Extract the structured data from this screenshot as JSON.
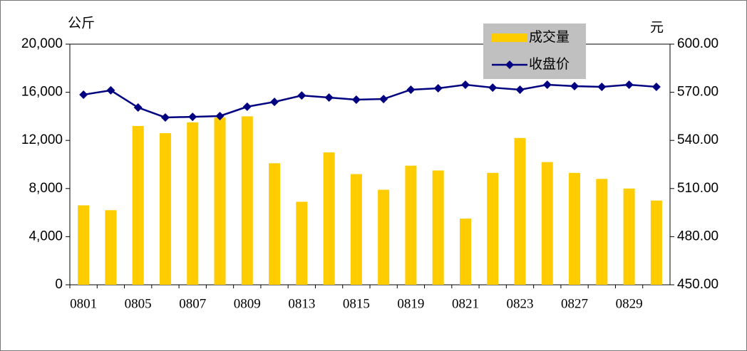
{
  "chart_data": {
    "type": "bar",
    "y_label": "公斤",
    "y2_label": "元",
    "categories": [
      "0801",
      null,
      "0805",
      null,
      "0807",
      null,
      "0809",
      null,
      "0813",
      null,
      "0815",
      null,
      "0819",
      null,
      "0821",
      null,
      "0823",
      null,
      "0827",
      null,
      "0829",
      null
    ],
    "series": [
      {
        "name": "成交量",
        "type": "bar",
        "color": "#ffcc00",
        "values": [
          6600,
          6200,
          13200,
          12600,
          13500,
          13900,
          14000,
          10100,
          6900,
          11000,
          9200,
          7900,
          9900,
          9500,
          5500,
          9300,
          12200,
          10200,
          9300,
          8800,
          8000,
          7000
        ]
      },
      {
        "name": "收盘价",
        "type": "line",
        "axis": "y2",
        "color": "#000080",
        "values": [
          568.5,
          571.2,
          560.5,
          554.3,
          554.7,
          555.2,
          561,
          564,
          568,
          566.7,
          565.4,
          565.8,
          571.6,
          572.5,
          574.7,
          572.9,
          571.6,
          574.7,
          573.8,
          573.4,
          574.7,
          573.4
        ]
      }
    ],
    "ylim": [
      0,
      20000
    ],
    "yticks": [
      0,
      {
        "value": 4000,
        "label": "4,000"
      },
      {
        "value": 8000,
        "label": "8,000"
      },
      {
        "value": 12000,
        "label": "12,000"
      },
      {
        "value": 16000,
        "label": "16,000"
      },
      {
        "value": 20000,
        "label": "20,000"
      }
    ],
    "y2lim": [
      450,
      600
    ],
    "y2ticks": [
      {
        "value": 450,
        "label": "450.00"
      },
      {
        "value": 480,
        "label": "480.00"
      },
      {
        "value": 510,
        "label": "510.00"
      },
      {
        "value": 540,
        "label": "540.00"
      },
      {
        "value": 570,
        "label": "570.00"
      },
      {
        "value": 600,
        "label": "600.00"
      }
    ],
    "legend": "top-right"
  }
}
